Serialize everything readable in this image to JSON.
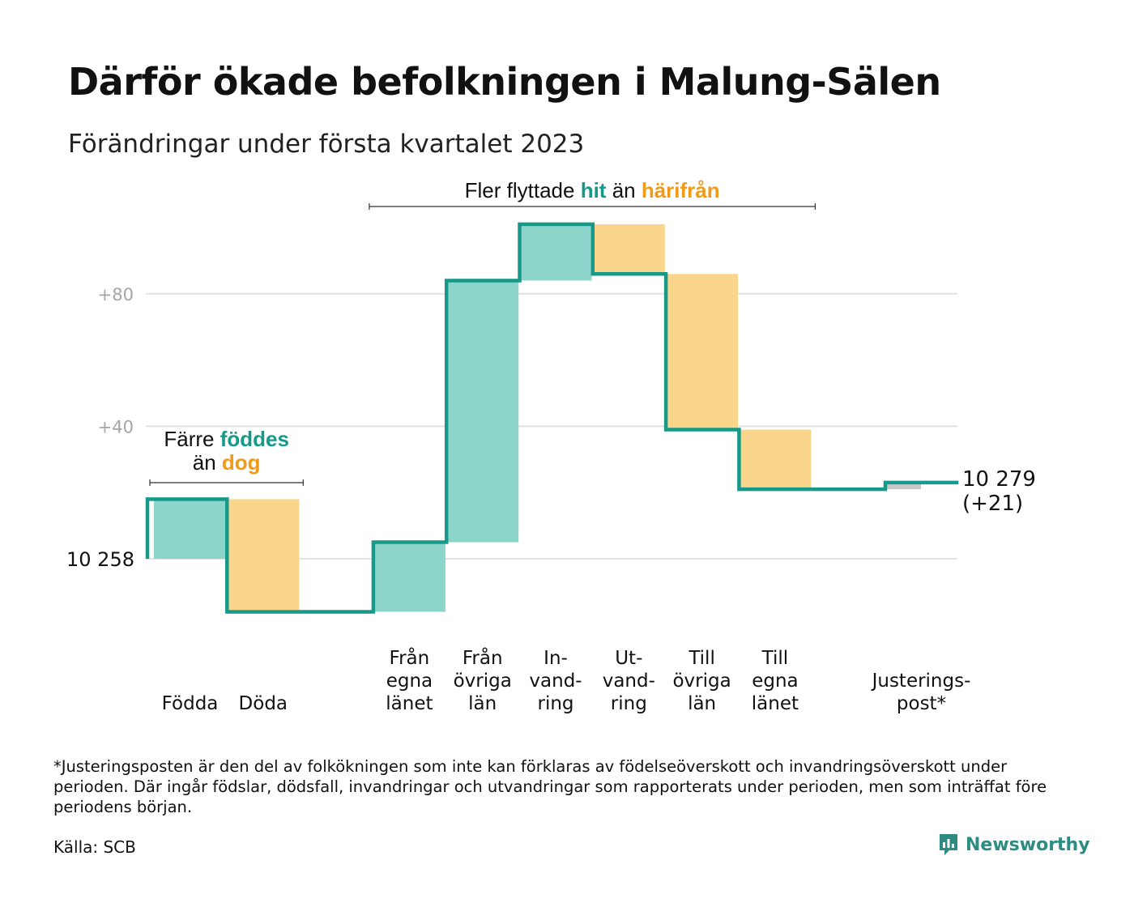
{
  "title": "Därför ökade befolkningen i Malung-Sälen",
  "subtitle": "Förändringar under första kvartalet 2023",
  "chart_data": {
    "type": "waterfall",
    "start": {
      "label": "10 258",
      "value": 10258
    },
    "end": {
      "label_line1": "10 279",
      "label_line2": "(+21)",
      "value": 10279,
      "change": 21
    },
    "y_ticks": [
      "+80",
      "+40"
    ],
    "y_tick_values": [
      80,
      40
    ],
    "ylim": [
      -20,
      103
    ],
    "grid": true,
    "steps": [
      {
        "label": [
          "",
          "",
          "Födda"
        ],
        "delta": 18,
        "kind": "in"
      },
      {
        "label": [
          "",
          "",
          "Döda"
        ],
        "delta": -34,
        "kind": "out"
      },
      {
        "label": [
          "",
          "",
          ""
        ],
        "delta": 0,
        "kind": "gap"
      },
      {
        "label": [
          "Från",
          "egna",
          "länet"
        ],
        "delta": 21,
        "kind": "in"
      },
      {
        "label": [
          "Från",
          "övriga",
          "län"
        ],
        "delta": 79,
        "kind": "in"
      },
      {
        "label": [
          "In-",
          "vand-",
          "ring"
        ],
        "delta": 17,
        "kind": "in"
      },
      {
        "label": [
          "Ut-",
          "vand-",
          "ring"
        ],
        "delta": -15,
        "kind": "out"
      },
      {
        "label": [
          "Till",
          "övriga",
          "län"
        ],
        "delta": -47,
        "kind": "out"
      },
      {
        "label": [
          "Till",
          "egna",
          "länet"
        ],
        "delta": -18,
        "kind": "out"
      },
      {
        "label": [
          "",
          "",
          ""
        ],
        "delta": 0,
        "kind": "gap"
      },
      {
        "label": [
          "",
          "Justerings-",
          "post*"
        ],
        "delta": 2,
        "kind": "adjust"
      }
    ],
    "annotations": [
      {
        "lines": [
          [
            {
              "text": "Färre ",
              "style": "plain"
            },
            {
              "text": "föddes",
              "style": "in"
            }
          ],
          [
            {
              "text": "än ",
              "style": "plain"
            },
            {
              "text": "dog",
              "style": "out"
            }
          ]
        ],
        "from_step": 0,
        "to_step": 1
      },
      {
        "lines": [
          [
            {
              "text": "Fler flyttade ",
              "style": "plain"
            },
            {
              "text": "hit",
              "style": "in"
            },
            {
              "text": " än ",
              "style": "plain"
            },
            {
              "text": "härifrån",
              "style": "out"
            }
          ]
        ],
        "from_step": 3,
        "to_step": 8
      }
    ],
    "colors": {
      "in": "#8dd5cb",
      "out": "#fad58c",
      "line": "#17998a",
      "adjust": "#c8c8c8",
      "grid": "#e2e2e2",
      "tick": "#a6a6a6",
      "in_text": "#17998a",
      "out_text": "#f09a18"
    }
  },
  "footnote": "*Justeringsposten är den del av folkökningen som inte kan förklaras av födelseöverskott och invandringsöverskott under perioden. Där ingår födslar, dödsfall, invandringar och utvandringar som rapporterats under perioden, men som inträffat före periodens början.",
  "source": "Källa: SCB",
  "brand": {
    "name": "Newsworthy",
    "color": "#2e8b82",
    "icon": "newsworthy-logo-icon"
  }
}
